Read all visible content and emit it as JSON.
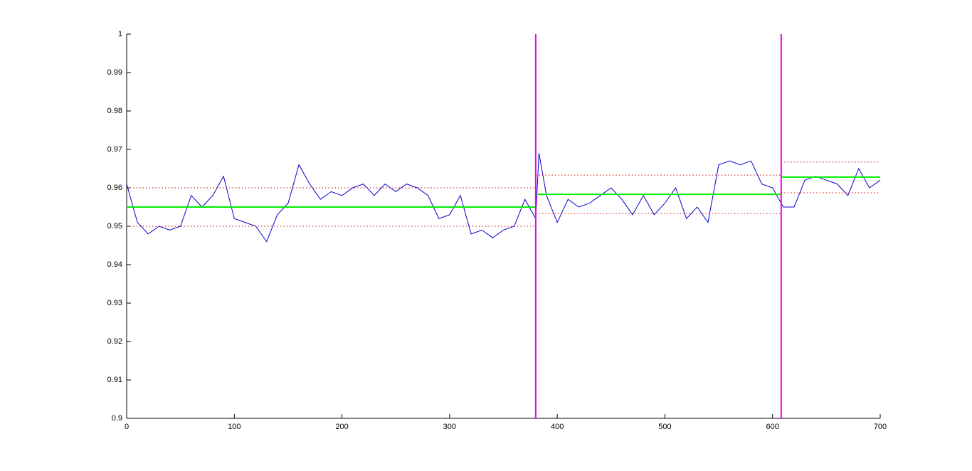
{
  "chart_data": {
    "type": "line",
    "xlim": [
      0,
      700
    ],
    "xticks": [
      0,
      100,
      200,
      300,
      400,
      500,
      600,
      700
    ],
    "ylim": [
      0.9,
      1
    ],
    "yticks": [
      0.9,
      0.91,
      0.92,
      0.93,
      0.94,
      0.95,
      0.96,
      0.97,
      0.98,
      0.99,
      1
    ],
    "series": [
      {
        "color": "#0000cc",
        "linestyle": "solid",
        "linewidth": 1,
        "x": [
          0,
          10,
          20,
          30,
          40,
          50,
          60,
          70,
          80,
          90,
          100,
          110,
          120,
          130,
          140,
          150,
          160,
          170,
          180,
          190,
          200,
          210,
          220,
          230,
          240,
          250,
          260,
          270,
          280,
          290,
          300,
          310,
          320,
          330,
          340,
          350,
          360,
          370,
          380,
          383,
          390,
          400,
          410,
          420,
          430,
          440,
          450,
          460,
          470,
          480,
          490,
          500,
          510,
          520,
          530,
          540,
          550,
          560,
          570,
          580,
          590,
          600,
          610,
          620,
          630,
          640,
          650,
          660,
          670,
          680,
          690,
          700
        ],
        "values": [
          0.961,
          0.951,
          0.948,
          0.95,
          0.949,
          0.95,
          0.958,
          0.955,
          0.958,
          0.963,
          0.952,
          0.951,
          0.95,
          0.946,
          0.953,
          0.956,
          0.966,
          0.961,
          0.957,
          0.959,
          0.958,
          0.96,
          0.961,
          0.958,
          0.961,
          0.959,
          0.961,
          0.96,
          0.958,
          0.952,
          0.953,
          0.958,
          0.948,
          0.949,
          0.947,
          0.949,
          0.95,
          0.957,
          0.952,
          0.969,
          0.958,
          0.951,
          0.957,
          0.955,
          0.956,
          0.958,
          0.96,
          0.957,
          0.953,
          0.958,
          0.953,
          0.956,
          0.96,
          0.952,
          0.955,
          0.951,
          0.966,
          0.967,
          0.966,
          0.967,
          0.961,
          0.96,
          0.955,
          0.955,
          0.962,
          0.963,
          0.962,
          0.961,
          0.958,
          0.965,
          0.96,
          0.962
        ]
      },
      {
        "color": "#00ee00",
        "linestyle": "solid",
        "linewidth": 2,
        "x": [
          0,
          380
        ],
        "values": [
          0.955,
          0.955
        ]
      },
      {
        "color": "#00ee00",
        "linestyle": "solid",
        "linewidth": 2,
        "x": [
          380,
          608
        ],
        "values": [
          0.9583,
          0.9583
        ]
      },
      {
        "color": "#00ee00",
        "linestyle": "solid",
        "linewidth": 2,
        "x": [
          608,
          700
        ],
        "values": [
          0.9628,
          0.9628
        ]
      },
      {
        "color": "#dd0000",
        "linestyle": "dotted",
        "linewidth": 1,
        "x": [
          0,
          380
        ],
        "values": [
          0.96,
          0.96
        ]
      },
      {
        "color": "#dd0000",
        "linestyle": "dotted",
        "linewidth": 1,
        "x": [
          0,
          380
        ],
        "values": [
          0.95,
          0.95
        ]
      },
      {
        "color": "#dd0000",
        "linestyle": "dotted",
        "linewidth": 1,
        "x": [
          380,
          608
        ],
        "values": [
          0.9633,
          0.9633
        ]
      },
      {
        "color": "#dd0000",
        "linestyle": "dotted",
        "linewidth": 1,
        "x": [
          380,
          608
        ],
        "values": [
          0.9533,
          0.9533
        ]
      },
      {
        "color": "#dd0000",
        "linestyle": "dotted",
        "linewidth": 1,
        "x": [
          608,
          700
        ],
        "values": [
          0.9667,
          0.9667
        ]
      },
      {
        "color": "#dd0000",
        "linestyle": "dotted",
        "linewidth": 1,
        "x": [
          608,
          700
        ],
        "values": [
          0.9587,
          0.9587
        ]
      }
    ],
    "vlines": [
      380,
      608
    ],
    "vline_color": "#ee00ee"
  }
}
